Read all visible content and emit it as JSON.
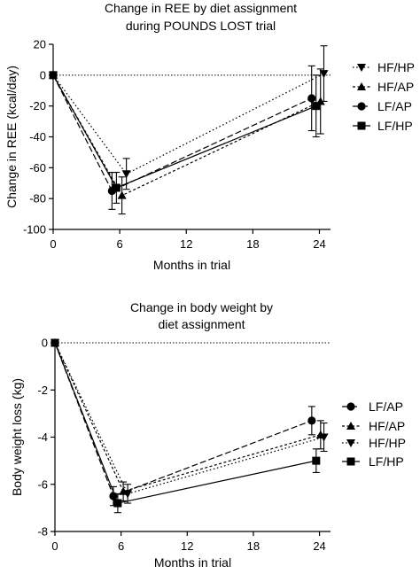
{
  "chart_data": [
    {
      "type": "line",
      "title_lines": [
        "Change in REE by diet assignment",
        "during POUNDS LOST trial"
      ],
      "xlabel": "Months in trial",
      "ylabel": "Change in REE (kcal/day)",
      "xlim": [
        0,
        25
      ],
      "ylim": [
        -100,
        20
      ],
      "xticks": [
        0,
        6,
        12,
        18,
        24
      ],
      "yticks": [
        20,
        0,
        -20,
        -40,
        -60,
        -80,
        -100
      ],
      "reference_line": 0,
      "legend_position": "right",
      "series": [
        {
          "name": "HF/HP",
          "marker": "triangle-down",
          "dash": "dotted",
          "points": [
            {
              "x": 0,
              "y": 0,
              "err": 0
            },
            {
              "x": 6.6,
              "y": -64,
              "err": 10
            },
            {
              "x": 24.4,
              "y": 1,
              "err": 18
            }
          ]
        },
        {
          "name": "HF/AP",
          "marker": "triangle-up",
          "dash": "dashed-short",
          "points": [
            {
              "x": 0,
              "y": 0,
              "err": 0
            },
            {
              "x": 6.2,
              "y": -78,
              "err": 12
            },
            {
              "x": 24.1,
              "y": -17,
              "err": 21
            }
          ]
        },
        {
          "name": "LF/AP",
          "marker": "circle",
          "dash": "dashed-long",
          "points": [
            {
              "x": 0,
              "y": 0,
              "err": 0
            },
            {
              "x": 5.3,
              "y": -75,
              "err": 12
            },
            {
              "x": 23.3,
              "y": -15,
              "err": 21
            }
          ]
        },
        {
          "name": "LF/HP",
          "marker": "square",
          "dash": "solid",
          "points": [
            {
              "x": 0,
              "y": 0,
              "err": 0
            },
            {
              "x": 5.7,
              "y": -73,
              "err": 10
            },
            {
              "x": 23.7,
              "y": -20,
              "err": 20
            }
          ]
        }
      ]
    },
    {
      "type": "line",
      "title_lines": [
        "Change in body weight by",
        "diet assignment"
      ],
      "xlabel": "Months in trial",
      "ylabel": "Body weight loss (kg)",
      "xlim": [
        0,
        25
      ],
      "ylim": [
        -8,
        0
      ],
      "xticks": [
        0,
        6,
        12,
        18,
        24
      ],
      "yticks": [
        0,
        -2,
        -4,
        -6,
        -8
      ],
      "reference_line": 0,
      "legend_position": "right",
      "series": [
        {
          "name": "LF/AP",
          "marker": "circle",
          "dash": "dashed-long",
          "points": [
            {
              "x": 0,
              "y": 0,
              "err": 0
            },
            {
              "x": 5.3,
              "y": -6.5,
              "err": 0.4
            },
            {
              "x": 23.3,
              "y": -3.3,
              "err": 0.6
            }
          ]
        },
        {
          "name": "HF/AP",
          "marker": "triangle-up",
          "dash": "dashed-short",
          "points": [
            {
              "x": 0,
              "y": 0,
              "err": 0
            },
            {
              "x": 6.2,
              "y": -6.3,
              "err": 0.4
            },
            {
              "x": 24.1,
              "y": -3.9,
              "err": 0.6
            }
          ]
        },
        {
          "name": "HF/HP",
          "marker": "triangle-down",
          "dash": "dotted",
          "points": [
            {
              "x": 0,
              "y": 0,
              "err": 0
            },
            {
              "x": 6.6,
              "y": -6.4,
              "err": 0.4
            },
            {
              "x": 24.4,
              "y": -4.0,
              "err": 0.6
            }
          ]
        },
        {
          "name": "LF/HP",
          "marker": "square",
          "dash": "solid",
          "points": [
            {
              "x": 0,
              "y": 0,
              "err": 0
            },
            {
              "x": 5.7,
              "y": -6.8,
              "err": 0.4
            },
            {
              "x": 23.7,
              "y": -5.0,
              "err": 0.5
            }
          ]
        }
      ]
    }
  ]
}
